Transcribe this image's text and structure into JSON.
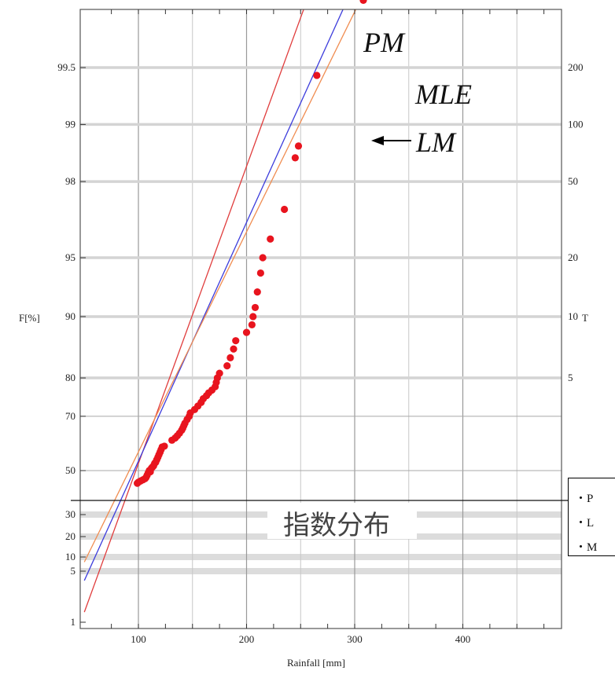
{
  "chart_data": {
    "type": "scatter",
    "xlabel": "Rainfall [mm]",
    "ylabel_left": "F[%]",
    "ylabel_right": "T",
    "xlim": [
      50,
      495
    ],
    "x_ticks": [
      100,
      200,
      300,
      400
    ],
    "upper_scale": "gumbel_probability",
    "left_ticks_upper": [
      {
        "F": 99.5,
        "label": "99.5"
      },
      {
        "F": 99,
        "label": "99"
      },
      {
        "F": 98,
        "label": "98"
      },
      {
        "F": 95,
        "label": "95"
      },
      {
        "F": 90,
        "label": "90"
      },
      {
        "F": 80,
        "label": "80"
      },
      {
        "F": 70,
        "label": "70"
      },
      {
        "F": 50,
        "label": "50"
      }
    ],
    "left_ticks_lower": [
      "30",
      "20",
      "10",
      "5",
      "1"
    ],
    "right_ticks": [
      {
        "T": 200,
        "label": "200"
      },
      {
        "T": 100,
        "label": "100"
      },
      {
        "T": 50,
        "label": "50"
      },
      {
        "T": 20,
        "label": "20"
      },
      {
        "T": 10,
        "label": "10"
      },
      {
        "T": 5,
        "label": "5"
      }
    ],
    "points": [
      [
        99,
        44.5
      ],
      [
        100,
        45.0
      ],
      [
        102,
        45.5
      ],
      [
        104,
        46.0
      ],
      [
        106,
        46.5
      ],
      [
        107,
        47.0
      ],
      [
        108,
        48.0
      ],
      [
        109,
        49.0
      ],
      [
        110,
        50.0
      ],
      [
        111,
        49.5
      ],
      [
        112,
        51.0
      ],
      [
        113,
        51.5
      ],
      [
        114,
        52.0
      ],
      [
        115,
        53.0
      ],
      [
        116,
        53.5
      ],
      [
        117,
        54.5
      ],
      [
        118,
        55.5
      ],
      [
        119,
        56.5
      ],
      [
        120,
        57.5
      ],
      [
        121,
        58.5
      ],
      [
        122,
        59.5
      ],
      [
        124,
        59.8
      ],
      [
        131,
        62.0
      ],
      [
        134,
        62.8
      ],
      [
        136,
        63.6
      ],
      [
        138,
        64.5
      ],
      [
        140,
        65.5
      ],
      [
        141,
        66.2
      ],
      [
        142,
        67.0
      ],
      [
        143,
        67.8
      ],
      [
        145,
        69.0
      ],
      [
        147,
        70.0
      ],
      [
        148,
        71.0
      ],
      [
        152,
        72.0
      ],
      [
        155,
        73.0
      ],
      [
        158,
        74.0
      ],
      [
        160,
        75.0
      ],
      [
        163,
        75.8
      ],
      [
        165,
        76.5
      ],
      [
        168,
        77.2
      ],
      [
        171,
        78.0
      ],
      [
        172,
        79.0
      ],
      [
        173,
        80.0
      ],
      [
        175,
        81.0
      ],
      [
        182,
        82.5
      ],
      [
        185,
        84.0
      ],
      [
        188,
        85.5
      ],
      [
        190,
        86.8
      ],
      [
        200,
        88.0
      ],
      [
        205,
        89.0
      ],
      [
        206,
        90.0
      ],
      [
        208,
        91.0
      ],
      [
        210,
        92.5
      ],
      [
        213,
        94.0
      ],
      [
        215,
        95.0
      ],
      [
        222,
        96.0
      ],
      [
        235,
        97.2
      ],
      [
        245,
        98.5
      ],
      [
        248,
        98.7
      ],
      [
        265,
        99.45
      ],
      [
        308,
        99.78
      ]
    ],
    "series": [
      {
        "name": "PM",
        "color": "#e03c3c",
        "x": [
          50,
          360
        ],
        "F": [
          2,
          99.995
        ]
      },
      {
        "name": "MLE",
        "color": "#3c3cdc",
        "x": [
          50,
          385
        ],
        "F": [
          7,
          99.985
        ]
      },
      {
        "name": "LM",
        "color": "#f08c50",
        "x": [
          50,
          405
        ],
        "F": [
          12,
          99.985
        ]
      }
    ],
    "annotation": "指数分布"
  },
  "legend_box": {
    "items": [
      "・P",
      "・L",
      "・M"
    ]
  },
  "colors": {
    "points": "#e8141e",
    "grid": "#b9b9b9",
    "band": "#dcdcdc"
  }
}
